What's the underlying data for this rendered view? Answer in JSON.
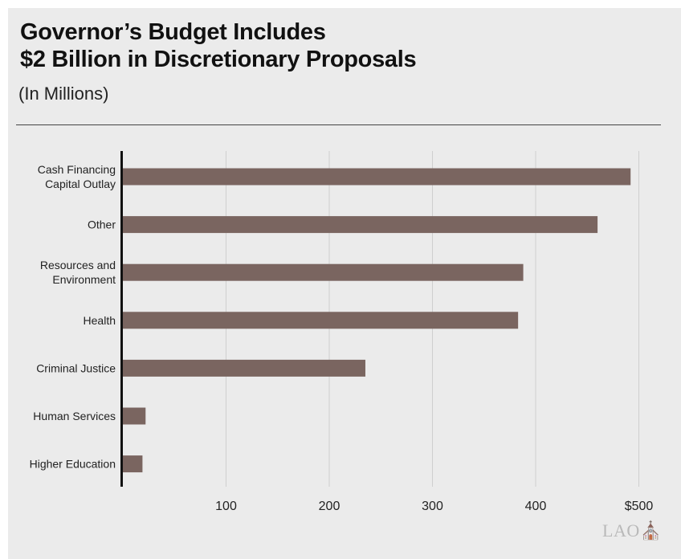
{
  "chart_data": {
    "type": "bar",
    "orientation": "horizontal",
    "title": [
      "Governor’s Budget Includes",
      "$2 Billion in Discretionary Proposals"
    ],
    "subtitle": "(In Millions)",
    "categories": [
      [
        "Cash Financing",
        "Capital Outlay"
      ],
      [
        "Other"
      ],
      [
        "Resources and",
        "Environment"
      ],
      [
        "Health"
      ],
      [
        "Criminal Justice"
      ],
      [
        "Human Services"
      ],
      [
        "Higher Education"
      ]
    ],
    "values": [
      492,
      460,
      388,
      383,
      235,
      22,
      19
    ],
    "xlim": [
      0,
      500
    ],
    "xticks": [
      100,
      200,
      300,
      400,
      500
    ],
    "xtick_labels": [
      "100",
      "200",
      "300",
      "400",
      "$500"
    ],
    "grid": "vertical",
    "bar_color": "#7a6560"
  },
  "logo_text": "LAO"
}
